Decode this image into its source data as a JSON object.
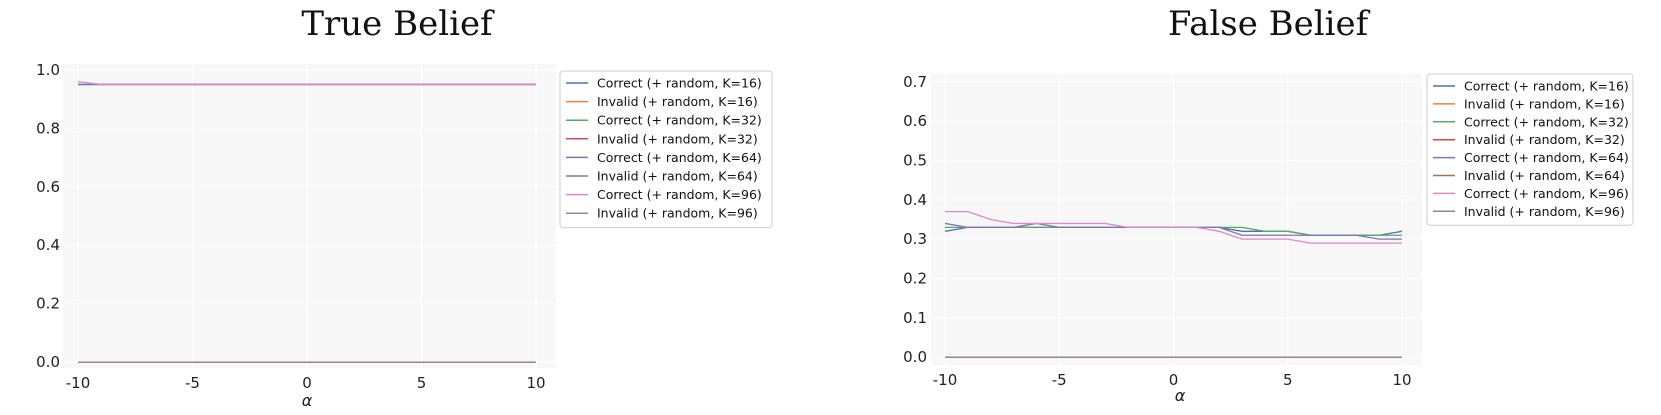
{
  "chart_data": [
    {
      "type": "line",
      "title": "True Belief",
      "xlabel": "α",
      "ylabel": "",
      "xlim": [
        -10,
        10
      ],
      "ylim": [
        -0.02,
        1.02
      ],
      "xticks": [
        -10,
        -5,
        0,
        5,
        10
      ],
      "xtick_labels": [
        "-10",
        "-5",
        "0",
        "5",
        "10"
      ],
      "yticks": [
        0.0,
        0.2,
        0.4,
        0.6,
        0.8,
        1.0
      ],
      "ytick_labels": [
        "0.0",
        "0.2",
        "0.4",
        "0.6",
        "0.8",
        "1.0"
      ],
      "grid": true,
      "legend_position": "outside-right",
      "x": [
        -10,
        -9,
        -8,
        -7,
        -6,
        -5,
        -4,
        -3,
        -2,
        -1,
        0,
        1,
        2,
        3,
        4,
        5,
        6,
        7,
        8,
        9,
        10
      ],
      "series": [
        {
          "name": "Correct (+ random, K=16)",
          "color": "#4c72b0",
          "values": [
            0.95,
            0.95,
            0.95,
            0.95,
            0.95,
            0.95,
            0.95,
            0.95,
            0.95,
            0.95,
            0.95,
            0.95,
            0.95,
            0.95,
            0.95,
            0.95,
            0.95,
            0.95,
            0.95,
            0.95,
            0.95
          ]
        },
        {
          "name": "Invalid (+ random, K=16)",
          "color": "#dd8452",
          "values": [
            0,
            0,
            0,
            0,
            0,
            0,
            0,
            0,
            0,
            0,
            0,
            0,
            0,
            0,
            0,
            0,
            0,
            0,
            0,
            0,
            0
          ]
        },
        {
          "name": "Correct (+ random, K=32)",
          "color": "#55a868",
          "values": [
            0.95,
            0.95,
            0.95,
            0.95,
            0.95,
            0.95,
            0.95,
            0.95,
            0.95,
            0.95,
            0.95,
            0.95,
            0.95,
            0.95,
            0.95,
            0.95,
            0.95,
            0.95,
            0.95,
            0.95,
            0.95
          ]
        },
        {
          "name": "Invalid (+ random, K=32)",
          "color": "#c44e52",
          "values": [
            0,
            0,
            0,
            0,
            0,
            0,
            0,
            0,
            0,
            0,
            0,
            0,
            0,
            0,
            0,
            0,
            0,
            0,
            0,
            0,
            0
          ]
        },
        {
          "name": "Correct (+ random, K=64)",
          "color": "#8172b3",
          "values": [
            0.95,
            0.95,
            0.95,
            0.95,
            0.95,
            0.95,
            0.95,
            0.95,
            0.95,
            0.95,
            0.95,
            0.95,
            0.95,
            0.95,
            0.95,
            0.95,
            0.95,
            0.95,
            0.95,
            0.95,
            0.95
          ]
        },
        {
          "name": "Invalid (+ random, K=64)",
          "color": "#937860",
          "values": [
            0,
            0,
            0,
            0,
            0,
            0,
            0,
            0,
            0,
            0,
            0,
            0,
            0,
            0,
            0,
            0,
            0,
            0,
            0,
            0,
            0
          ]
        },
        {
          "name": "Correct (+ random, K=96)",
          "color": "#da8bc3",
          "values": [
            0.96,
            0.95,
            0.95,
            0.95,
            0.95,
            0.95,
            0.95,
            0.95,
            0.95,
            0.95,
            0.95,
            0.95,
            0.95,
            0.95,
            0.95,
            0.95,
            0.95,
            0.95,
            0.95,
            0.95,
            0.95
          ]
        },
        {
          "name": "Invalid (+ random, K=96)",
          "color": "#8c8c8c",
          "values": [
            0,
            0,
            0,
            0,
            0,
            0,
            0,
            0,
            0,
            0,
            0,
            0,
            0,
            0,
            0,
            0,
            0,
            0,
            0,
            0,
            0
          ]
        }
      ]
    },
    {
      "type": "line",
      "title": "False Belief",
      "xlabel": "α",
      "ylabel": "",
      "xlim": [
        -10,
        10
      ],
      "ylim": [
        -0.02,
        0.72
      ],
      "xticks": [
        -10,
        -5,
        0,
        5,
        10
      ],
      "xtick_labels": [
        "-10",
        "-5",
        "0",
        "5",
        "10"
      ],
      "yticks": [
        0.0,
        0.1,
        0.2,
        0.3,
        0.4,
        0.5,
        0.6,
        0.7
      ],
      "ytick_labels": [
        "0.0",
        "0.1",
        "0.2",
        "0.3",
        "0.4",
        "0.5",
        "0.6",
        "0.7"
      ],
      "grid": true,
      "legend_position": "outside-right",
      "x": [
        -10,
        -9,
        -8,
        -7,
        -6,
        -5,
        -4,
        -3,
        -2,
        -1,
        0,
        1,
        2,
        3,
        4,
        5,
        6,
        7,
        8,
        9,
        10
      ],
      "series": [
        {
          "name": "Correct (+ random, K=16)",
          "color": "#4c72b0",
          "values": [
            0.32,
            0.33,
            0.33,
            0.33,
            0.33,
            0.33,
            0.33,
            0.33,
            0.33,
            0.33,
            0.33,
            0.33,
            0.33,
            0.32,
            0.32,
            0.32,
            0.31,
            0.31,
            0.31,
            0.31,
            0.32
          ]
        },
        {
          "name": "Invalid (+ random, K=16)",
          "color": "#dd8452",
          "values": [
            0,
            0,
            0,
            0,
            0,
            0,
            0,
            0,
            0,
            0,
            0,
            0,
            0,
            0,
            0,
            0,
            0,
            0,
            0,
            0,
            0
          ]
        },
        {
          "name": "Correct (+ random, K=32)",
          "color": "#55a868",
          "values": [
            0.33,
            0.33,
            0.33,
            0.33,
            0.33,
            0.33,
            0.33,
            0.33,
            0.33,
            0.33,
            0.33,
            0.33,
            0.33,
            0.33,
            0.32,
            0.32,
            0.31,
            0.31,
            0.31,
            0.31,
            0.31
          ]
        },
        {
          "name": "Invalid (+ random, K=32)",
          "color": "#c44e52",
          "values": [
            0,
            0,
            0,
            0,
            0,
            0,
            0,
            0,
            0,
            0,
            0,
            0,
            0,
            0,
            0,
            0,
            0,
            0,
            0,
            0,
            0
          ]
        },
        {
          "name": "Correct (+ random, K=64)",
          "color": "#8172b3",
          "values": [
            0.34,
            0.33,
            0.33,
            0.33,
            0.34,
            0.33,
            0.33,
            0.33,
            0.33,
            0.33,
            0.33,
            0.33,
            0.33,
            0.31,
            0.31,
            0.31,
            0.31,
            0.31,
            0.31,
            0.3,
            0.3
          ]
        },
        {
          "name": "Invalid (+ random, K=64)",
          "color": "#937860",
          "values": [
            0,
            0,
            0,
            0,
            0,
            0,
            0,
            0,
            0,
            0,
            0,
            0,
            0,
            0,
            0,
            0,
            0,
            0,
            0,
            0,
            0
          ]
        },
        {
          "name": "Correct (+ random, K=96)",
          "color": "#da8bc3",
          "values": [
            0.37,
            0.37,
            0.35,
            0.34,
            0.34,
            0.34,
            0.34,
            0.34,
            0.33,
            0.33,
            0.33,
            0.33,
            0.32,
            0.3,
            0.3,
            0.3,
            0.29,
            0.29,
            0.29,
            0.29,
            0.29
          ]
        },
        {
          "name": "Invalid (+ random, K=96)",
          "color": "#8c8c8c",
          "values": [
            0,
            0,
            0,
            0,
            0,
            0,
            0,
            0,
            0,
            0,
            0,
            0,
            0,
            0,
            0,
            0,
            0,
            0,
            0,
            0,
            0
          ]
        }
      ]
    }
  ]
}
